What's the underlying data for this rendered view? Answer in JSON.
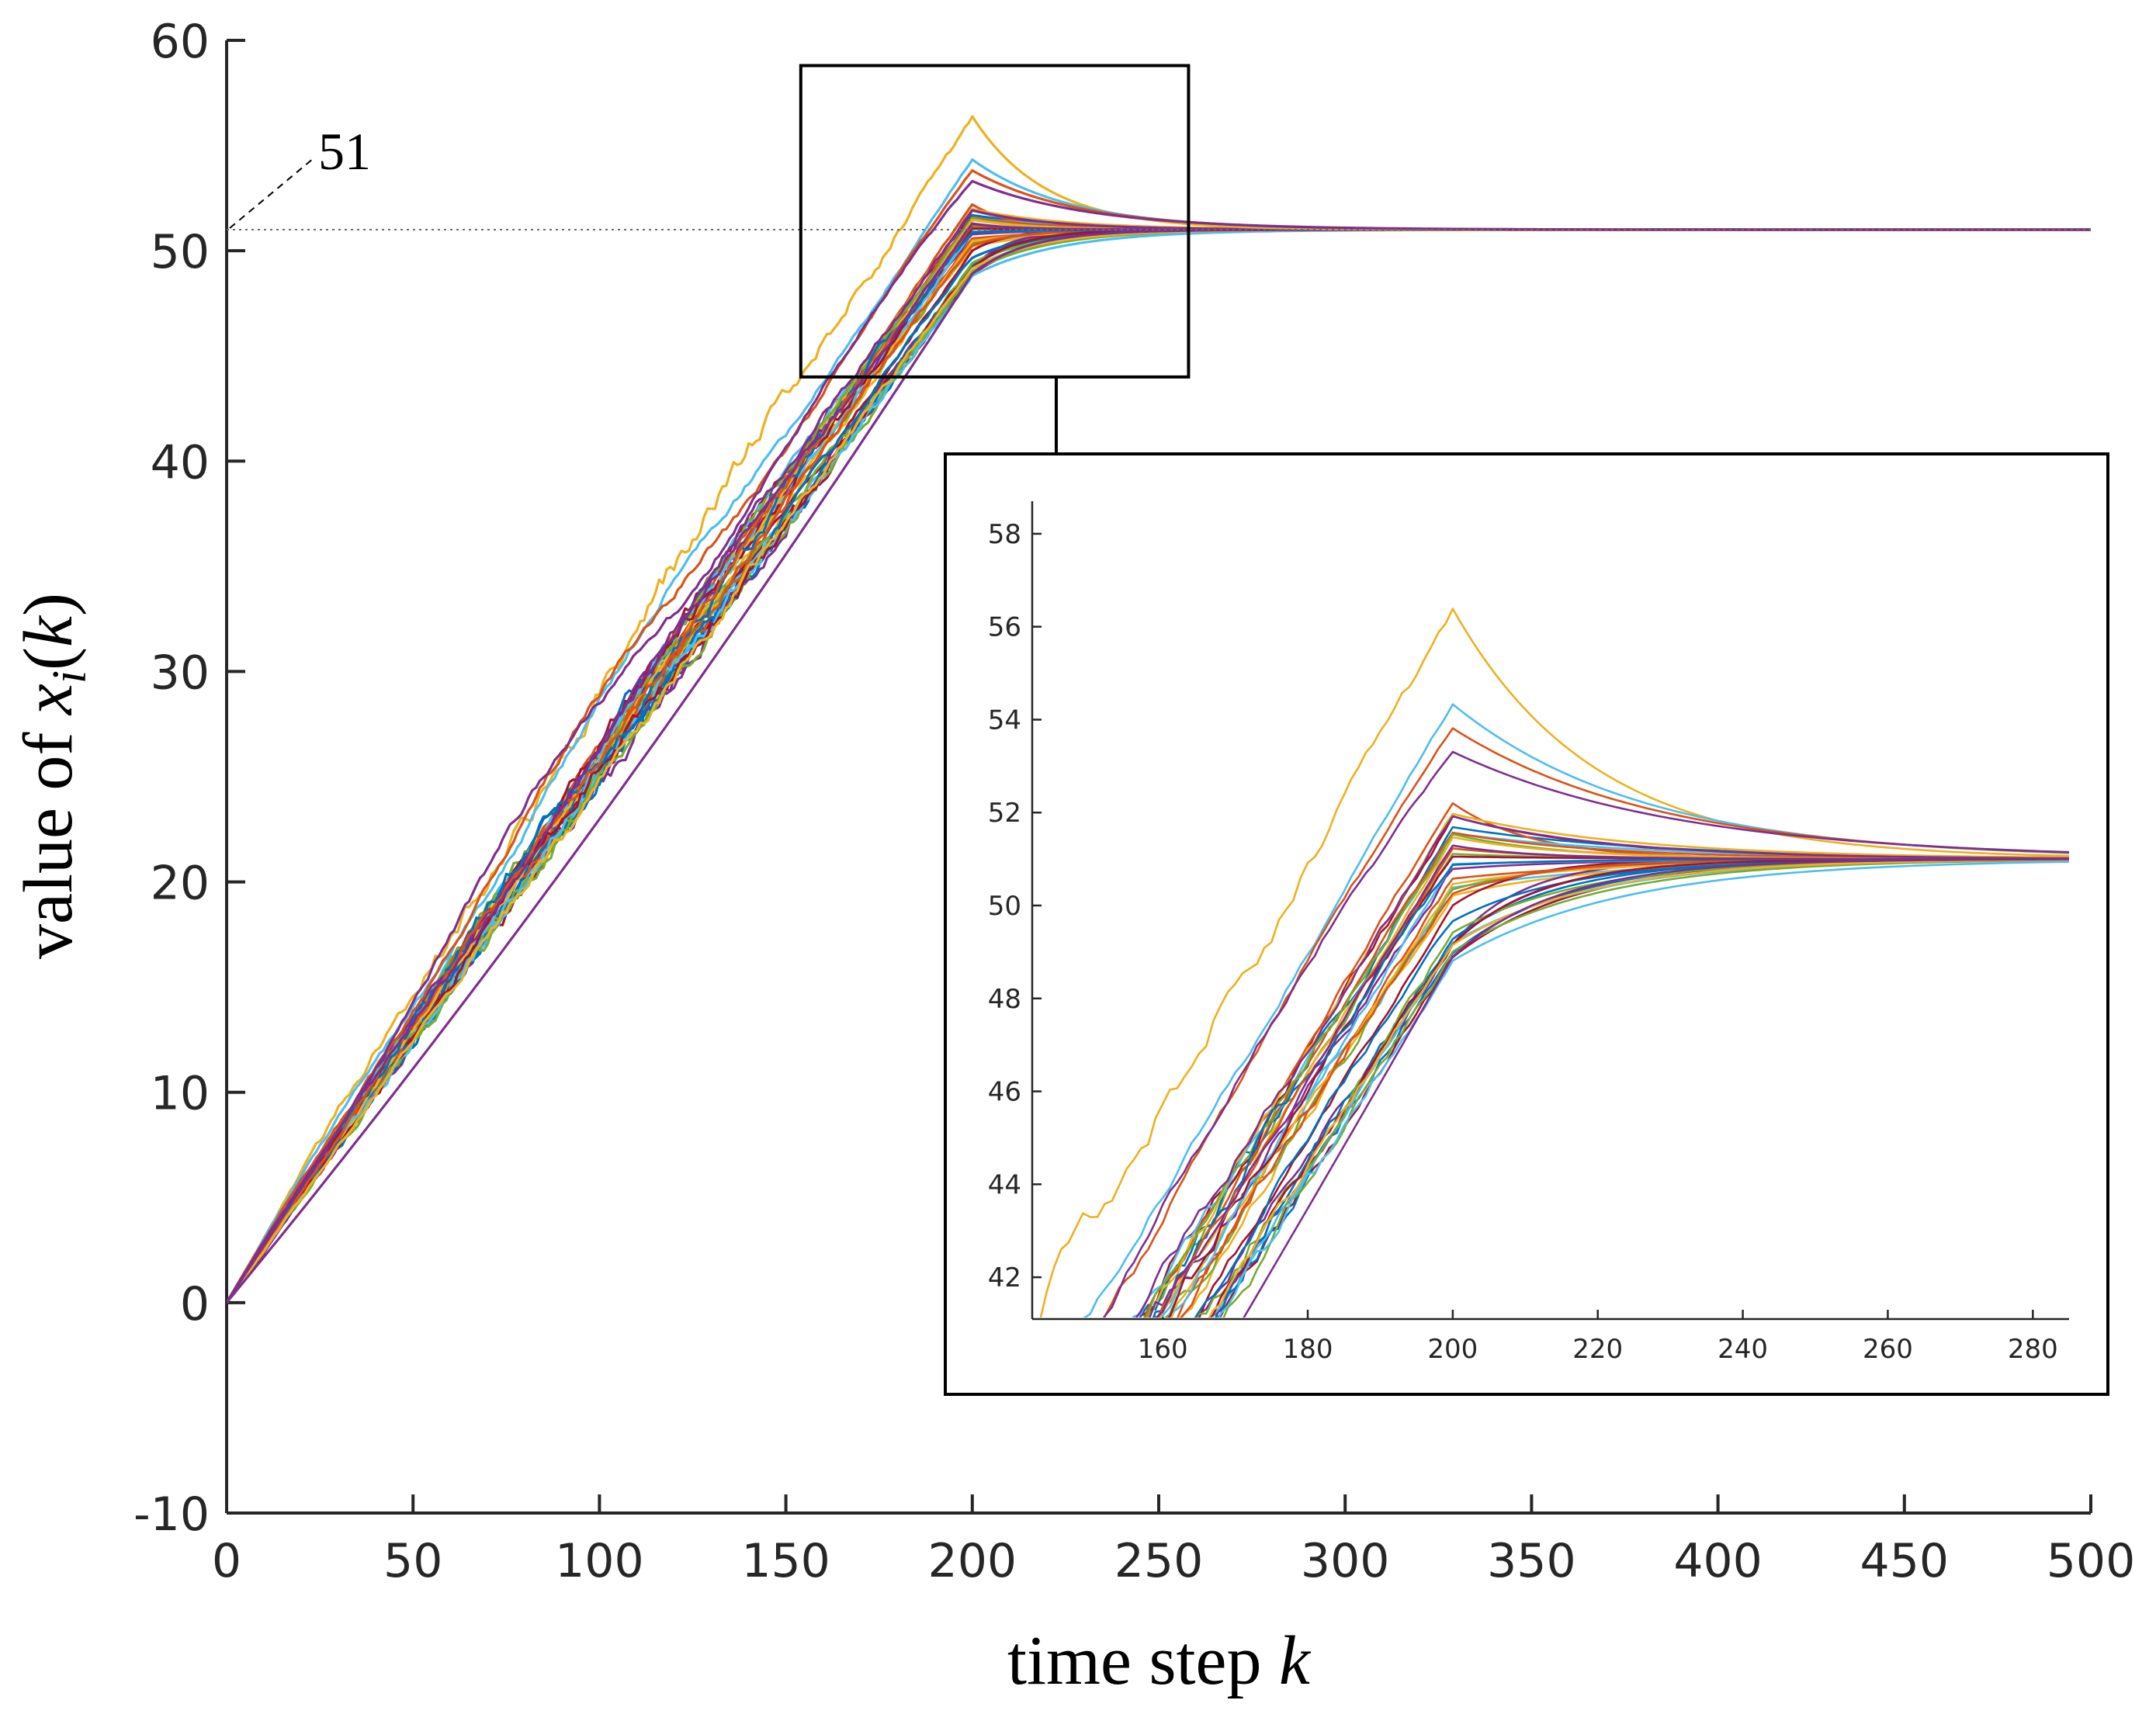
{
  "chart_data": {
    "type": "line",
    "xlabel": {
      "prefix": "time step ",
      "var": "k"
    },
    "ylabel": {
      "prefix": "value of ",
      "var": "x",
      "sub": "i",
      "arg": "k"
    },
    "xlim": [
      0,
      500
    ],
    "ylim": [
      -10,
      60
    ],
    "xticks": [
      "0",
      "50",
      "100",
      "150",
      "200",
      "250",
      "300",
      "350",
      "400",
      "450",
      "500"
    ],
    "yticks": [
      "-10",
      "0",
      "10",
      "20",
      "30",
      "40",
      "50",
      "60"
    ],
    "consensus_value": 51,
    "consensus_label": "51",
    "switch_step": 200,
    "num_agents": 40,
    "series_colors": [
      "#0072BD",
      "#D95319",
      "#EDB120",
      "#7E2F8E",
      "#77AC30",
      "#4DBEEE",
      "#A2142F"
    ],
    "highlighted_trajectories": [
      {
        "name": "agent-max",
        "color": "#EDB120",
        "peak_step": 200,
        "peak_value": 56.4
      },
      {
        "name": "agent-high-2",
        "color": "#4DBEEE",
        "peak_step": 200,
        "peak_value": 54.3
      },
      {
        "name": "agent-high-3",
        "color": "#D95319",
        "peak_step": 205,
        "peak_value": 53.7
      },
      {
        "name": "agent-high-4",
        "color": "#7E2F8E",
        "peak_step": 200,
        "peak_value": 53.2
      },
      {
        "name": "agent-min",
        "color": "#7E2F8E",
        "value_at_switch": 48.9
      }
    ],
    "zoom_box": {
      "x_range": [
        154,
        258
      ],
      "y_range": [
        44,
        58.8
      ]
    },
    "inset": {
      "xlim": [
        142,
        285
      ],
      "ylim": [
        41.1,
        58.7
      ],
      "xticks": [
        "160",
        "180",
        "200",
        "220",
        "240",
        "260",
        "280"
      ],
      "yticks": [
        "42",
        "44",
        "46",
        "48",
        "50",
        "52",
        "54",
        "56",
        "58"
      ]
    }
  }
}
